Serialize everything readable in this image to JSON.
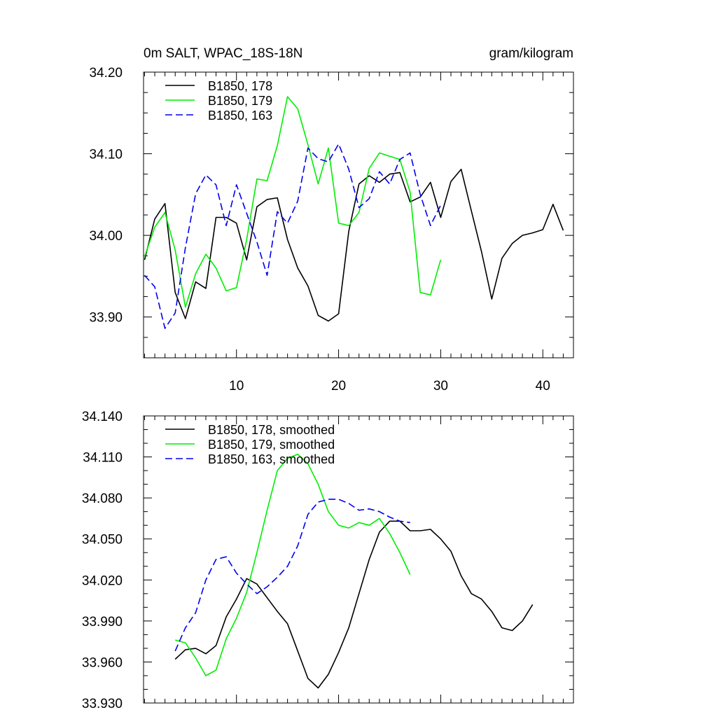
{
  "chart_data": [
    {
      "type": "line",
      "title": "0m SALT, WPAC_18S-18N",
      "units": "gram/kilogram",
      "xlabel": "",
      "ylabel": "",
      "xlim": [
        0.9,
        43
      ],
      "ylim": [
        33.85,
        34.2
      ],
      "xticks": [
        10,
        20,
        30,
        40
      ],
      "xtick_labels": [
        "10",
        "20",
        "30",
        "40"
      ],
      "yticks": [
        33.9,
        34.0,
        34.1,
        34.2
      ],
      "ytick_labels": [
        "33.90",
        "34.00",
        "34.10",
        "34.20"
      ],
      "legend_position": "top-left",
      "series": [
        {
          "name": "B1850, 178",
          "color": "#000000",
          "dash": "solid",
          "x": [
            1,
            2,
            3,
            4,
            5,
            6,
            7,
            8,
            9,
            10,
            11,
            12,
            13,
            14,
            15,
            16,
            17,
            18,
            19,
            20,
            21,
            22,
            23,
            24,
            25,
            26,
            27,
            28,
            29,
            30,
            31,
            32,
            33,
            34,
            35,
            36,
            37,
            38,
            39,
            40,
            41,
            42
          ],
          "y": [
            33.97,
            34.02,
            34.039,
            33.93,
            33.898,
            33.943,
            33.935,
            34.022,
            34.022,
            34.015,
            33.97,
            34.035,
            34.044,
            34.046,
            33.995,
            33.96,
            33.938,
            33.902,
            33.895,
            33.904,
            34.005,
            34.063,
            34.073,
            34.065,
            34.075,
            34.077,
            34.041,
            34.047,
            34.065,
            34.022,
            34.066,
            34.081,
            34.03,
            33.98,
            33.922,
            33.972,
            33.99,
            34.0,
            34.003,
            34.007,
            34.038,
            34.006
          ]
        },
        {
          "name": "B1850, 179",
          "color": "#00ee00",
          "dash": "solid",
          "x": [
            1,
            2,
            3,
            4,
            5,
            6,
            7,
            8,
            9,
            10,
            11,
            12,
            13,
            14,
            15,
            16,
            17,
            18,
            19,
            20,
            21,
            22,
            23,
            24,
            25,
            26,
            27,
            28,
            29,
            30
          ],
          "y": [
            33.974,
            34.01,
            34.028,
            33.982,
            33.912,
            33.953,
            33.977,
            33.96,
            33.932,
            33.936,
            33.995,
            34.069,
            34.067,
            34.11,
            34.17,
            34.155,
            34.111,
            34.063,
            34.107,
            34.015,
            34.012,
            34.028,
            34.082,
            34.101,
            34.097,
            34.093,
            34.053,
            33.93,
            33.927,
            33.97
          ]
        },
        {
          "name": "B1850, 163",
          "color": "#0000ee",
          "dash": "dashed",
          "x": [
            1,
            2,
            3,
            4,
            5,
            6,
            7,
            8,
            9,
            10,
            11,
            12,
            13,
            14,
            15,
            16,
            17,
            18,
            19,
            20,
            21,
            22,
            23,
            24,
            25,
            26,
            27,
            28,
            29,
            30
          ],
          "y": [
            33.951,
            33.937,
            33.886,
            33.905,
            33.985,
            34.051,
            34.074,
            34.062,
            34.012,
            34.062,
            34.027,
            33.992,
            33.951,
            34.029,
            34.015,
            34.042,
            34.107,
            34.094,
            34.09,
            34.112,
            34.081,
            34.034,
            34.045,
            34.078,
            34.063,
            34.093,
            34.101,
            34.05,
            34.012,
            34.037
          ]
        }
      ]
    },
    {
      "type": "line",
      "title": "",
      "xlabel": "",
      "ylabel": "",
      "xlim": [
        0.9,
        43
      ],
      "ylim": [
        33.93,
        34.14
      ],
      "xticks": [
        10,
        20,
        30,
        40
      ],
      "xtick_labels": [],
      "yticks": [
        33.93,
        33.96,
        33.99,
        34.02,
        34.05,
        34.08,
        34.11,
        34.14
      ],
      "ytick_labels": [
        "33.930",
        "33.960",
        "33.990",
        "34.020",
        "34.050",
        "34.080",
        "34.110",
        "34.140"
      ],
      "legend_position": "top-left",
      "series": [
        {
          "name": "B1850, 178, smoothed",
          "color": "#000000",
          "dash": "solid",
          "x": [
            4,
            5,
            6,
            7,
            8,
            9,
            10,
            11,
            12,
            13,
            14,
            15,
            16,
            17,
            18,
            19,
            20,
            21,
            22,
            23,
            24,
            25,
            26,
            27,
            28,
            29,
            30,
            31,
            32,
            33,
            34,
            35,
            36,
            37,
            38,
            39
          ],
          "y": [
            33.962,
            33.969,
            33.97,
            33.966,
            33.972,
            33.993,
            34.006,
            34.021,
            34.017,
            34.007,
            33.997,
            33.988,
            33.968,
            33.948,
            33.941,
            33.951,
            33.967,
            33.985,
            34.01,
            34.035,
            34.055,
            34.063,
            34.063,
            34.056,
            34.056,
            34.057,
            34.05,
            34.041,
            34.023,
            34.01,
            34.006,
            33.997,
            33.985,
            33.983,
            33.99,
            34.002
          ]
        },
        {
          "name": "B1850, 179, smoothed",
          "color": "#00ee00",
          "dash": "solid",
          "x": [
            4,
            5,
            6,
            7,
            8,
            9,
            10,
            11,
            12,
            13,
            14,
            15,
            16,
            17,
            18,
            19,
            20,
            21,
            22,
            23,
            24,
            25,
            26,
            27
          ],
          "y": [
            33.976,
            33.974,
            33.963,
            33.95,
            33.954,
            33.977,
            33.992,
            34.011,
            34.04,
            34.071,
            34.1,
            34.109,
            34.112,
            34.105,
            34.09,
            34.07,
            34.06,
            34.058,
            34.062,
            34.06,
            34.065,
            34.054,
            34.04,
            34.024
          ]
        },
        {
          "name": "B1850, 163, smoothed",
          "color": "#0000ee",
          "dash": "dashed",
          "x": [
            4,
            5,
            6,
            7,
            8,
            9,
            10,
            11,
            12,
            13,
            14,
            15,
            16,
            17,
            18,
            19,
            20,
            21,
            22,
            23,
            24,
            25,
            26,
            27
          ],
          "y": [
            33.968,
            33.985,
            33.996,
            34.02,
            34.035,
            34.037,
            34.025,
            34.017,
            34.01,
            34.015,
            34.022,
            34.03,
            34.045,
            34.068,
            34.077,
            34.079,
            34.079,
            34.076,
            34.071,
            34.072,
            34.07,
            34.066,
            34.063,
            34.062
          ]
        }
      ]
    }
  ]
}
